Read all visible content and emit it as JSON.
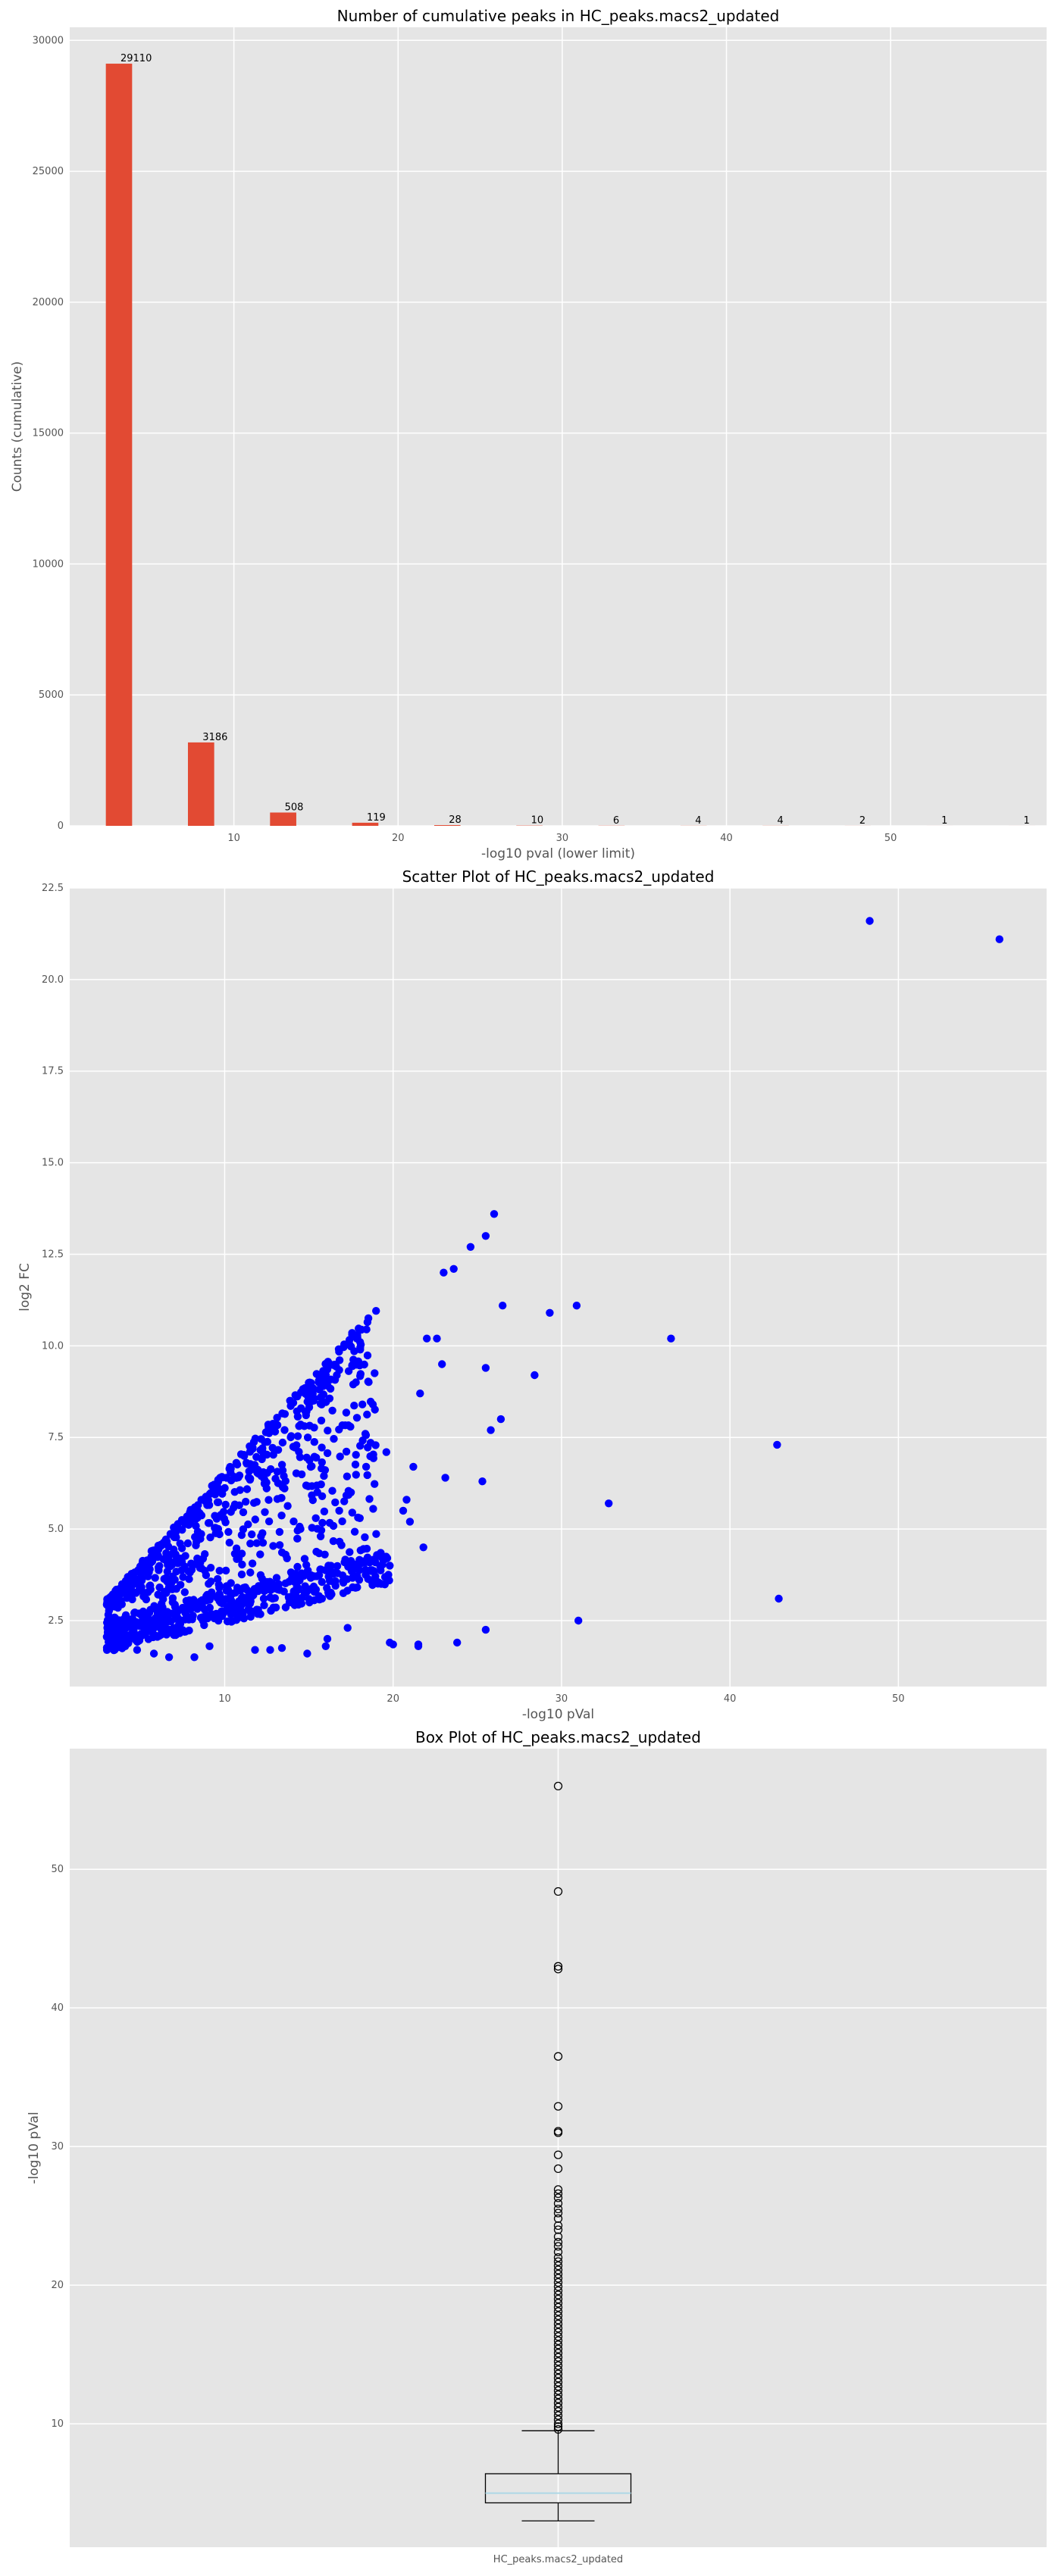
{
  "colors": {
    "background": "#e5e5e5",
    "grid": "#ffffff",
    "bar": "#e24a33",
    "scatter": "#0000ff",
    "median": "#add8e6"
  },
  "chart_data": [
    {
      "type": "bar",
      "title": "Number of cumulative peaks in HC_peaks.macs2_updated",
      "xlabel": "-log10 pval (lower limit)",
      "ylabel": "Counts (cumulative)",
      "x": [
        3,
        8,
        13,
        18,
        23,
        28,
        33,
        38,
        43,
        48,
        53,
        58
      ],
      "values": [
        29110,
        3186,
        508,
        119,
        28,
        10,
        6,
        4,
        4,
        2,
        1,
        1
      ],
      "data_labels": [
        "29110",
        "3186",
        "508",
        "119",
        "28",
        "10",
        "6",
        "4",
        "4",
        "2",
        "1",
        "1"
      ],
      "xlim": [
        0,
        59.5
      ],
      "ylim": [
        0,
        30500
      ],
      "xticks": [
        10,
        20,
        30,
        40,
        50
      ],
      "yticks": [
        0,
        5000,
        10000,
        15000,
        20000,
        25000,
        30000
      ],
      "grid": true
    },
    {
      "type": "scatter",
      "title": "Scatter Plot of HC_peaks.macs2_updated",
      "xlabel": "-log10 pVal",
      "ylabel": "log2 FC",
      "xlim": [
        0.8,
        58.8
      ],
      "ylim": [
        0.7,
        22.5
      ],
      "xticks": [
        10,
        20,
        30,
        40,
        50
      ],
      "yticks": [
        2.5,
        5.0,
        7.5,
        10.0,
        12.5,
        15.0,
        17.5,
        20.0,
        22.5
      ],
      "grid": true,
      "dense_bands": [
        {
          "x_min": 3,
          "x_max": 19,
          "y_at_min": 3.0,
          "y_at_max": 11.0
        },
        {
          "x_min": 3,
          "x_max": 20,
          "y_at_min": 2.0,
          "y_at_max": 3.9
        }
      ],
      "points": [
        [
          48.3,
          21.6
        ],
        [
          56.0,
          21.1
        ],
        [
          26.0,
          13.6
        ],
        [
          25.5,
          13.0
        ],
        [
          24.6,
          12.7
        ],
        [
          23.6,
          12.1
        ],
        [
          23.0,
          12.0
        ],
        [
          26.5,
          11.1
        ],
        [
          29.3,
          10.9
        ],
        [
          30.9,
          11.1
        ],
        [
          36.5,
          10.2
        ],
        [
          25.5,
          9.4
        ],
        [
          28.4,
          9.2
        ],
        [
          26.4,
          8.0
        ],
        [
          25.8,
          7.7
        ],
        [
          42.8,
          7.3
        ],
        [
          23.1,
          6.4
        ],
        [
          25.3,
          6.3
        ],
        [
          32.8,
          5.7
        ],
        [
          42.9,
          3.1
        ],
        [
          31.0,
          2.5
        ],
        [
          25.5,
          2.25
        ],
        [
          23.8,
          1.9
        ],
        [
          21.5,
          1.85
        ],
        [
          21.5,
          1.8
        ],
        [
          19.8,
          1.9
        ],
        [
          20.0,
          1.85
        ],
        [
          22.0,
          10.2
        ],
        [
          22.6,
          10.2
        ],
        [
          22.9,
          9.5
        ],
        [
          21.6,
          8.7
        ],
        [
          21.2,
          6.7
        ],
        [
          21.0,
          5.2
        ],
        [
          21.8,
          4.5
        ],
        [
          20.8,
          5.8
        ],
        [
          20.6,
          5.5
        ],
        [
          16.0,
          1.8
        ],
        [
          16.1,
          2.0
        ],
        [
          14.9,
          1.6
        ],
        [
          13.4,
          1.75
        ],
        [
          12.7,
          1.7
        ],
        [
          11.8,
          1.7
        ],
        [
          9.1,
          1.8
        ],
        [
          8.2,
          1.5
        ],
        [
          6.7,
          1.5
        ],
        [
          5.8,
          1.6
        ],
        [
          4.8,
          1.7
        ],
        [
          4.1,
          1.8
        ],
        [
          17.3,
          2.3
        ],
        [
          19.3,
          3.5
        ],
        [
          19.8,
          4.0
        ],
        [
          18.8,
          8.4
        ],
        [
          19.6,
          7.1
        ],
        [
          18.4,
          6.7
        ],
        [
          17.5,
          6.0
        ],
        [
          16.8,
          5.5
        ],
        [
          15.7,
          4.8
        ],
        [
          14.5,
          5.0
        ],
        [
          13.7,
          4.2
        ]
      ]
    },
    {
      "type": "box",
      "title": "Box Plot of HC_peaks.macs2_updated",
      "xlabel": "",
      "ylabel": "-log10 pVal",
      "categories": [
        "HC_peaks.macs2_updated"
      ],
      "ylim": [
        1.1,
        58.7
      ],
      "yticks": [
        10,
        20,
        30,
        40,
        50
      ],
      "grid": true,
      "whisker_low": 3.0,
      "q1": 4.3,
      "median": 5.0,
      "q3": 6.4,
      "whisker_high": 9.5,
      "outliers": [
        56.0,
        48.4,
        43.0,
        42.8,
        36.5,
        32.9,
        31.1,
        31.0,
        29.4,
        28.4,
        26.9,
        26.6,
        26.3,
        25.9,
        25.5,
        25.2,
        24.8,
        24.3,
        24.0,
        23.5,
        23.1,
        22.8,
        22.4,
        22.0,
        21.7,
        21.4,
        21.1,
        20.8,
        20.5,
        20.2,
        19.9,
        19.6,
        19.3,
        19.0,
        18.7,
        18.4,
        18.1,
        17.8,
        17.5,
        17.2,
        16.9,
        16.6,
        16.3,
        16.0,
        15.7,
        15.4,
        15.1,
        14.8,
        14.5,
        14.2,
        13.9,
        13.6,
        13.3,
        13.0,
        12.7,
        12.4,
        12.1,
        11.8,
        11.5,
        11.2,
        10.9,
        10.6,
        10.3,
        10.0,
        9.8,
        9.6
      ]
    }
  ]
}
